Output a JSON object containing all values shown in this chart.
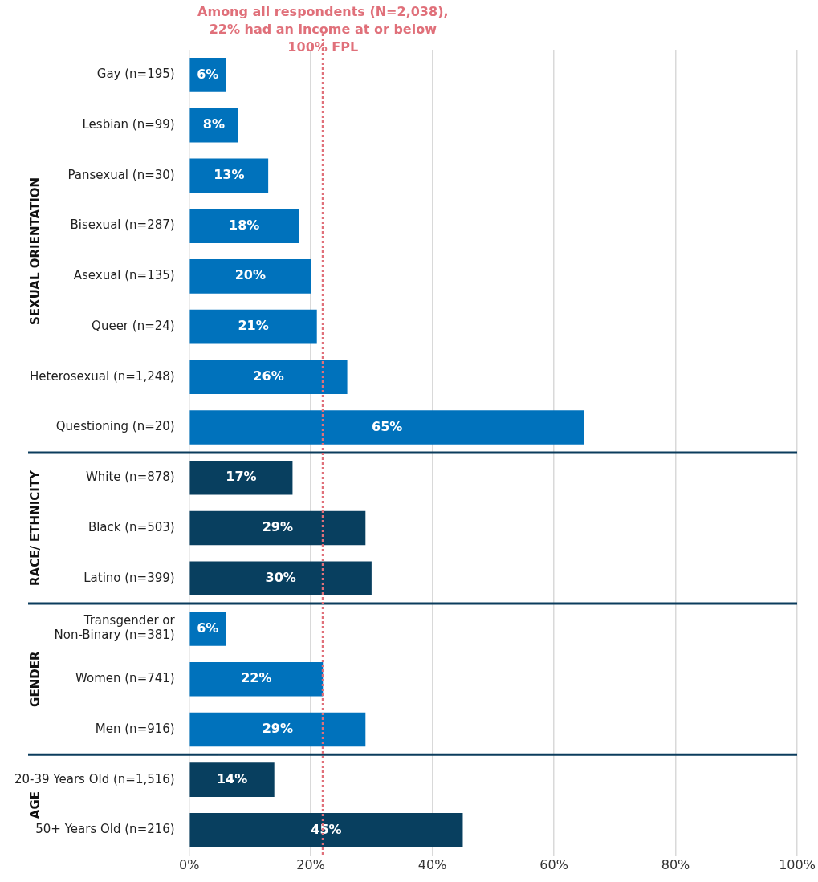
{
  "chart_data": {
    "type": "bar",
    "orientation": "horizontal",
    "categories": [
      "Gay (n=195)",
      "Lesbian (n=99)",
      "Pansexual (n=30)",
      "Bisexual (n=287)",
      "Asexual (n=135)",
      "Queer (n=24)",
      "Heterosexual (n=1,248)",
      "Questioning (n=20)",
      "White (n=878)",
      "Black (n=503)",
      "Latino (n=399)",
      "Transgender or Non-Binary (n=381)",
      "Women (n=741)",
      "Men (n=916)",
      "20-39 Years Old (n=1,516)",
      "50+ Years Old (n=216)"
    ],
    "values": [
      6,
      8,
      13,
      18,
      20,
      21,
      26,
      65,
      17,
      29,
      30,
      6,
      22,
      29,
      14,
      45
    ],
    "value_labels": [
      "6%",
      "8%",
      "13%",
      "18%",
      "20%",
      "21%",
      "26%",
      "65%",
      "17%",
      "29%",
      "30%",
      "6%",
      "22%",
      "29%",
      "14%",
      "45%"
    ],
    "colors": [
      "#0072bc",
      "#0072bc",
      "#0072bc",
      "#0072bc",
      "#0072bc",
      "#0072bc",
      "#0072bc",
      "#0072bc",
      "#083f5f",
      "#083f5f",
      "#083f5f",
      "#0072bc",
      "#0072bc",
      "#0072bc",
      "#083f5f",
      "#083f5f"
    ],
    "xlim": [
      0,
      100
    ],
    "xticks": [
      {
        "value": 0,
        "label": "0%"
      },
      {
        "value": 20,
        "label": "20%"
      },
      {
        "value": 40,
        "label": "40%"
      },
      {
        "value": 60,
        "label": "60%"
      },
      {
        "value": 80,
        "label": "80%"
      },
      {
        "value": 100,
        "label": "100%"
      }
    ],
    "grid": "x",
    "legend": false,
    "ref_lines": [
      {
        "axis": "x",
        "value": 22,
        "label": "Among all respondents (N=2,038), 22% had an income at or below 100% FPL",
        "color": "#e0707a",
        "line_style": "dotted"
      }
    ],
    "annotations": [
      "SEXUAL ORIENTATION",
      "RACE/ ETHNICITY",
      "GENDER",
      "AGE"
    ]
  }
}
